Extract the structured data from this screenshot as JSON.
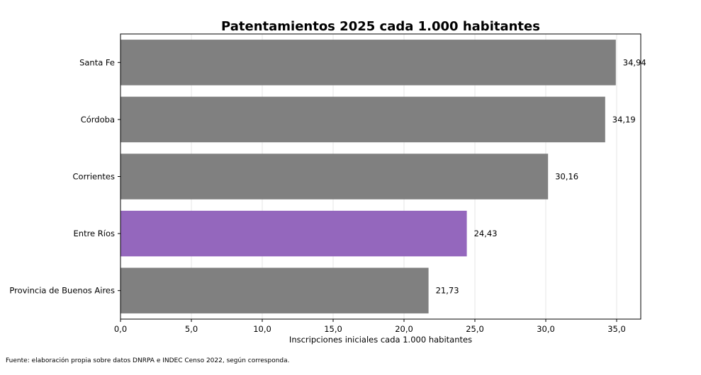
{
  "chart_data": {
    "type": "bar",
    "orientation": "horizontal",
    "title": "Patentamientos 2025 cada 1.000 habitantes",
    "xlabel": "Inscripciones iniciales cada 1.000 habitantes",
    "ylabel": "",
    "categories": [
      "Santa Fe",
      "Córdoba",
      "Corrientes",
      "Entre Ríos",
      "Provincia de Buenos Aires"
    ],
    "values": [
      34.94,
      34.19,
      30.16,
      24.43,
      21.73
    ],
    "value_labels": [
      "34,94",
      "34,19",
      "30,16",
      "24,43",
      "21,73"
    ],
    "highlight": "Entre Ríos",
    "xlim": [
      0,
      36.7
    ],
    "xticks": [
      0,
      5,
      10,
      15,
      20,
      25,
      30,
      35
    ],
    "xtick_labels": [
      "0,0",
      "5,0",
      "10,0",
      "15,0",
      "20,0",
      "25,0",
      "30,0",
      "35,0"
    ],
    "grid": "x",
    "colors": {
      "default": "#808080",
      "highlight": "#9467bd",
      "grid": "#e6e6e6"
    }
  },
  "footer": {
    "source": "Fuente: elaboración propia sobre datos DNRPA e INDEC Censo 2022, según corresponda."
  }
}
